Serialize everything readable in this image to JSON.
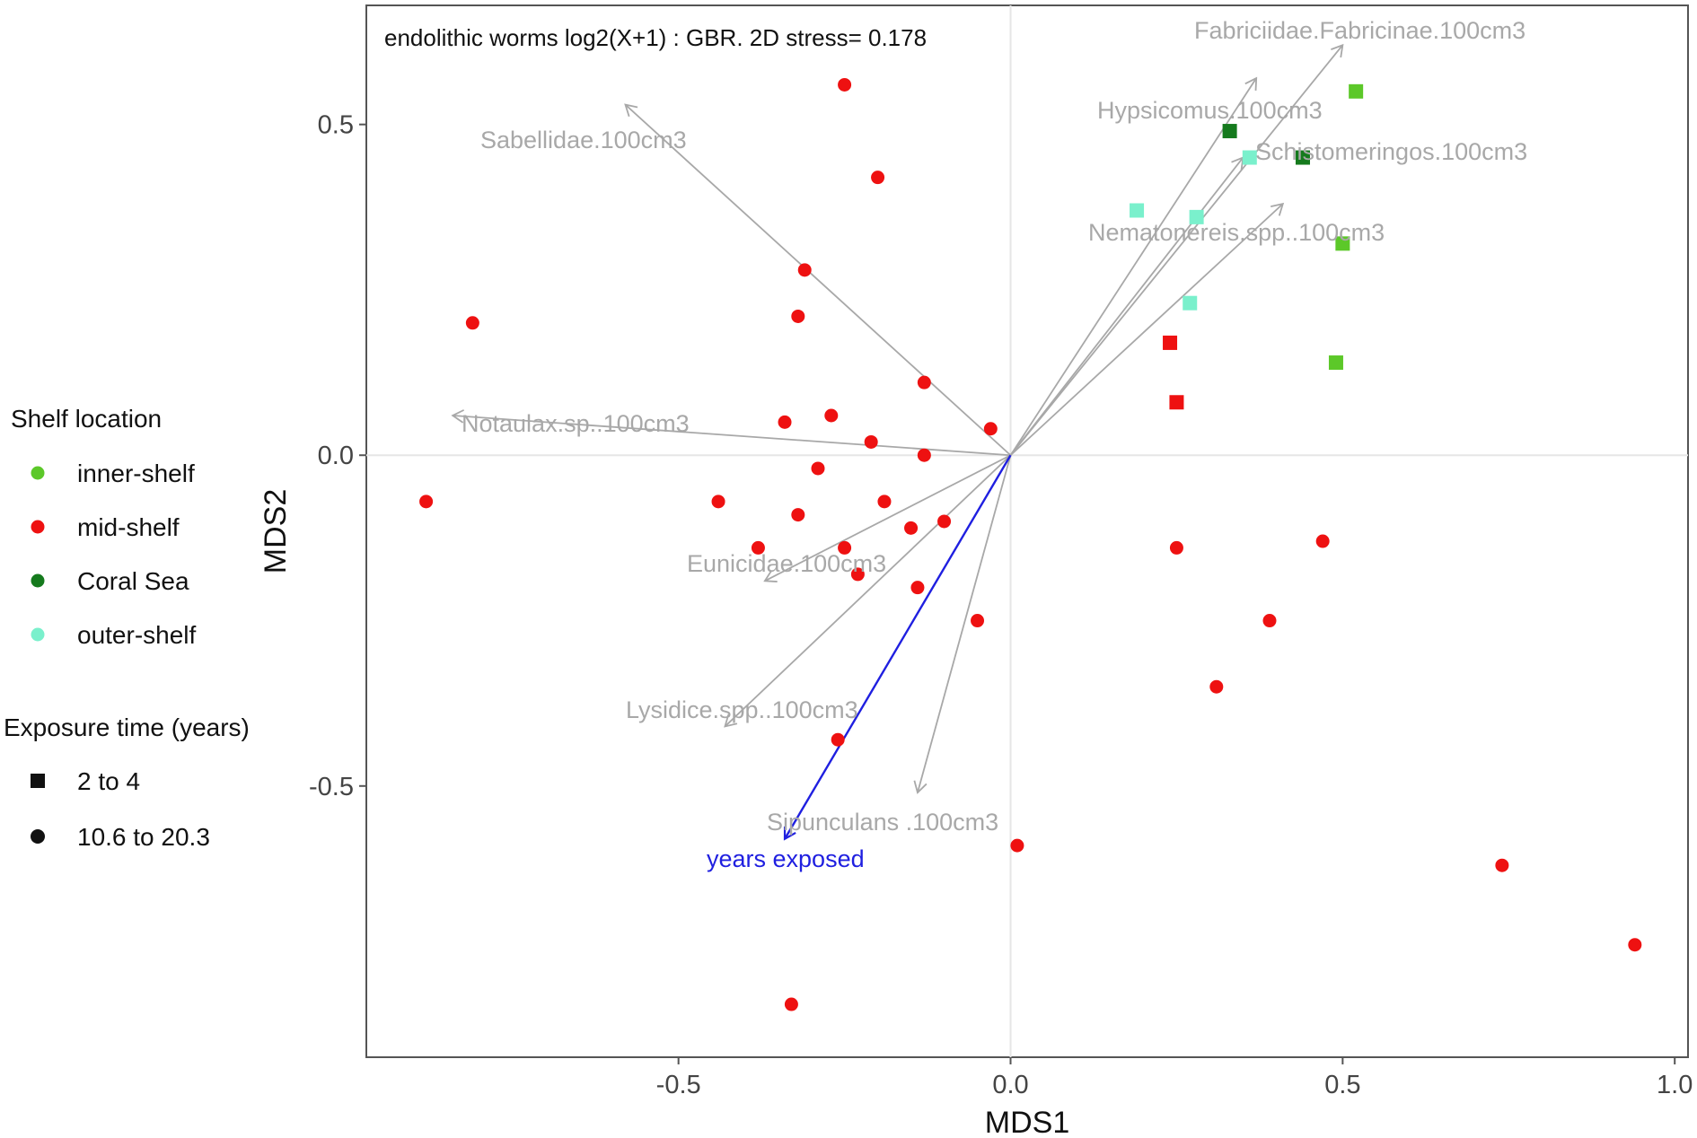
{
  "chart_data": {
    "type": "scatter",
    "title": "endolithic worms log2(X+1) : GBR. 2D stress= 0.178",
    "xlabel": "MDS1",
    "ylabel": "MDS2",
    "xlim": [
      -0.97,
      1.02
    ],
    "ylim": [
      -0.91,
      0.68
    ],
    "x_ticks": [
      {
        "value": -0.5,
        "label": "-0.5"
      },
      {
        "value": 0.0,
        "label": "0.0"
      },
      {
        "value": 0.5,
        "label": "0.5"
      },
      {
        "value": 1.0,
        "label": "1.0"
      }
    ],
    "y_ticks": [
      {
        "value": 0.5,
        "label": "0.5"
      },
      {
        "value": 0.0,
        "label": "0.0"
      },
      {
        "value": -0.5,
        "label": "-0.5"
      }
    ],
    "grid": "zero lines only",
    "legend": {
      "placement": "left",
      "color_title": "Shelf location",
      "color_entries": [
        {
          "key": "inner",
          "label": "inner-shelf",
          "color": "#5cc829"
        },
        {
          "key": "mid",
          "label": "mid-shelf",
          "color": "#ee1111"
        },
        {
          "key": "coral",
          "label": "Coral Sea",
          "color": "#157a1d"
        },
        {
          "key": "outer",
          "label": "outer-shelf",
          "color": "#7af0cc"
        }
      ],
      "shape_title": "Exposure time (years)",
      "shape_entries": [
        {
          "key": "square",
          "label": "2 to 4"
        },
        {
          "key": "circle",
          "label": "10.6 to 20.3"
        }
      ]
    },
    "points": [
      {
        "x": -0.25,
        "y": 0.56,
        "group": "mid",
        "shape": "circle"
      },
      {
        "x": -0.2,
        "y": 0.42,
        "group": "mid",
        "shape": "circle"
      },
      {
        "x": -0.81,
        "y": 0.2,
        "group": "mid",
        "shape": "circle"
      },
      {
        "x": -0.31,
        "y": 0.28,
        "group": "mid",
        "shape": "circle"
      },
      {
        "x": -0.32,
        "y": 0.21,
        "group": "mid",
        "shape": "circle"
      },
      {
        "x": -0.13,
        "y": 0.11,
        "group": "mid",
        "shape": "circle"
      },
      {
        "x": -0.27,
        "y": 0.06,
        "group": "mid",
        "shape": "circle"
      },
      {
        "x": -0.34,
        "y": 0.05,
        "group": "mid",
        "shape": "circle"
      },
      {
        "x": -0.03,
        "y": 0.04,
        "group": "mid",
        "shape": "circle"
      },
      {
        "x": -0.21,
        "y": 0.02,
        "group": "mid",
        "shape": "circle"
      },
      {
        "x": -0.13,
        "y": 0.0,
        "group": "mid",
        "shape": "circle"
      },
      {
        "x": -0.29,
        "y": -0.02,
        "group": "mid",
        "shape": "circle"
      },
      {
        "x": -0.88,
        "y": -0.07,
        "group": "mid",
        "shape": "circle"
      },
      {
        "x": -0.44,
        "y": -0.07,
        "group": "mid",
        "shape": "circle"
      },
      {
        "x": -0.19,
        "y": -0.07,
        "group": "mid",
        "shape": "circle"
      },
      {
        "x": -0.32,
        "y": -0.09,
        "group": "mid",
        "shape": "circle"
      },
      {
        "x": -0.1,
        "y": -0.1,
        "group": "mid",
        "shape": "circle"
      },
      {
        "x": -0.15,
        "y": -0.11,
        "group": "mid",
        "shape": "circle"
      },
      {
        "x": -0.38,
        "y": -0.14,
        "group": "mid",
        "shape": "circle"
      },
      {
        "x": -0.25,
        "y": -0.14,
        "group": "mid",
        "shape": "circle"
      },
      {
        "x": -0.23,
        "y": -0.18,
        "group": "mid",
        "shape": "circle"
      },
      {
        "x": -0.14,
        "y": -0.2,
        "group": "mid",
        "shape": "circle"
      },
      {
        "x": -0.05,
        "y": -0.25,
        "group": "mid",
        "shape": "circle"
      },
      {
        "x": -0.26,
        "y": -0.43,
        "group": "mid",
        "shape": "circle"
      },
      {
        "x": 0.01,
        "y": -0.59,
        "group": "mid",
        "shape": "circle"
      },
      {
        "x": -0.33,
        "y": -0.83,
        "group": "mid",
        "shape": "circle"
      },
      {
        "x": 0.25,
        "y": -0.14,
        "group": "mid",
        "shape": "circle"
      },
      {
        "x": 0.47,
        "y": -0.13,
        "group": "mid",
        "shape": "circle"
      },
      {
        "x": 0.39,
        "y": -0.25,
        "group": "mid",
        "shape": "circle"
      },
      {
        "x": 0.31,
        "y": -0.35,
        "group": "mid",
        "shape": "circle"
      },
      {
        "x": 0.74,
        "y": -0.62,
        "group": "mid",
        "shape": "circle"
      },
      {
        "x": 0.94,
        "y": -0.74,
        "group": "mid",
        "shape": "circle"
      },
      {
        "x": 0.24,
        "y": 0.17,
        "group": "mid",
        "shape": "square"
      },
      {
        "x": 0.25,
        "y": 0.08,
        "group": "mid",
        "shape": "square"
      },
      {
        "x": 0.52,
        "y": 0.55,
        "group": "inner",
        "shape": "square"
      },
      {
        "x": 0.5,
        "y": 0.32,
        "group": "inner",
        "shape": "square"
      },
      {
        "x": 0.49,
        "y": 0.14,
        "group": "inner",
        "shape": "square"
      },
      {
        "x": 0.33,
        "y": 0.49,
        "group": "coral",
        "shape": "square"
      },
      {
        "x": 0.44,
        "y": 0.45,
        "group": "coral",
        "shape": "square"
      },
      {
        "x": 0.36,
        "y": 0.45,
        "group": "outer",
        "shape": "square"
      },
      {
        "x": 0.19,
        "y": 0.37,
        "group": "outer",
        "shape": "square"
      },
      {
        "x": 0.28,
        "y": 0.36,
        "group": "outer",
        "shape": "square"
      },
      {
        "x": 0.27,
        "y": 0.23,
        "group": "outer",
        "shape": "square"
      }
    ],
    "vectors": [
      {
        "label": "Fabriciidae.Fabricinae.100cm3",
        "x": 0.5,
        "y": 0.62,
        "color": "#a8a8a8"
      },
      {
        "label": "Hypsicomus.100cm3",
        "x": 0.37,
        "y": 0.57,
        "color": "#a8a8a8"
      },
      {
        "label": "Schistomeringos.100cm3",
        "x": 0.35,
        "y": 0.45,
        "color": "#a8a8a8"
      },
      {
        "label": "Nematonereis.spp..100cm3",
        "x": 0.41,
        "y": 0.38,
        "color": "#a8a8a8"
      },
      {
        "label": "Sabellidae.100cm3",
        "x": -0.58,
        "y": 0.53,
        "color": "#a8a8a8"
      },
      {
        "label": "Notaulax.sp..100cm3",
        "x": -0.84,
        "y": 0.06,
        "color": "#a8a8a8"
      },
      {
        "label": "Eunicidae.100cm3",
        "x": -0.37,
        "y": -0.19,
        "color": "#a8a8a8"
      },
      {
        "label": "Lysidice.spp..100cm3",
        "x": -0.43,
        "y": -0.41,
        "color": "#a8a8a8"
      },
      {
        "label": "Sipunculans .100cm3",
        "x": -0.14,
        "y": -0.51,
        "color": "#a8a8a8"
      },
      {
        "label": "years exposed",
        "x": -0.34,
        "y": -0.58,
        "color": "#1f1fe0"
      }
    ]
  }
}
